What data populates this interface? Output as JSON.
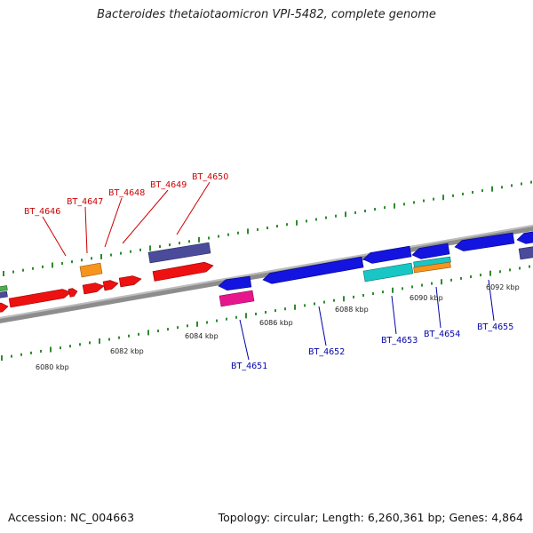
{
  "title": "Bacteroides thetaiotaomicron VPI-5482, complete genome",
  "footer": {
    "accession": "Accession: NC_004663",
    "summary": "Topology: circular; Length: 6,260,361 bp; Genes: 4,864"
  },
  "colors": {
    "forward_label": "#cc0000",
    "reverse_label": "#0000aa",
    "backbone": "#888888",
    "ticks": "#2e8b2e"
  },
  "ruler": [
    {
      "label": "6080 kbp"
    },
    {
      "label": "6082 kbp"
    },
    {
      "label": "6084 kbp"
    },
    {
      "label": "6086 kbp"
    },
    {
      "label": "6088 kbp"
    },
    {
      "label": "6090 kbp"
    },
    {
      "label": "6092 kbp"
    }
  ],
  "gene_labels": [
    {
      "name": "BT_4646",
      "strand": "forward"
    },
    {
      "name": "BT_4647",
      "strand": "forward"
    },
    {
      "name": "BT_4648",
      "strand": "forward"
    },
    {
      "name": "BT_4649",
      "strand": "forward"
    },
    {
      "name": "BT_4650",
      "strand": "forward"
    },
    {
      "name": "BT_4651",
      "strand": "reverse"
    },
    {
      "name": "BT_4652",
      "strand": "reverse"
    },
    {
      "name": "BT_4653",
      "strand": "reverse"
    },
    {
      "name": "BT_4654",
      "strand": "reverse"
    },
    {
      "name": "BT_4655",
      "strand": "reverse"
    }
  ]
}
